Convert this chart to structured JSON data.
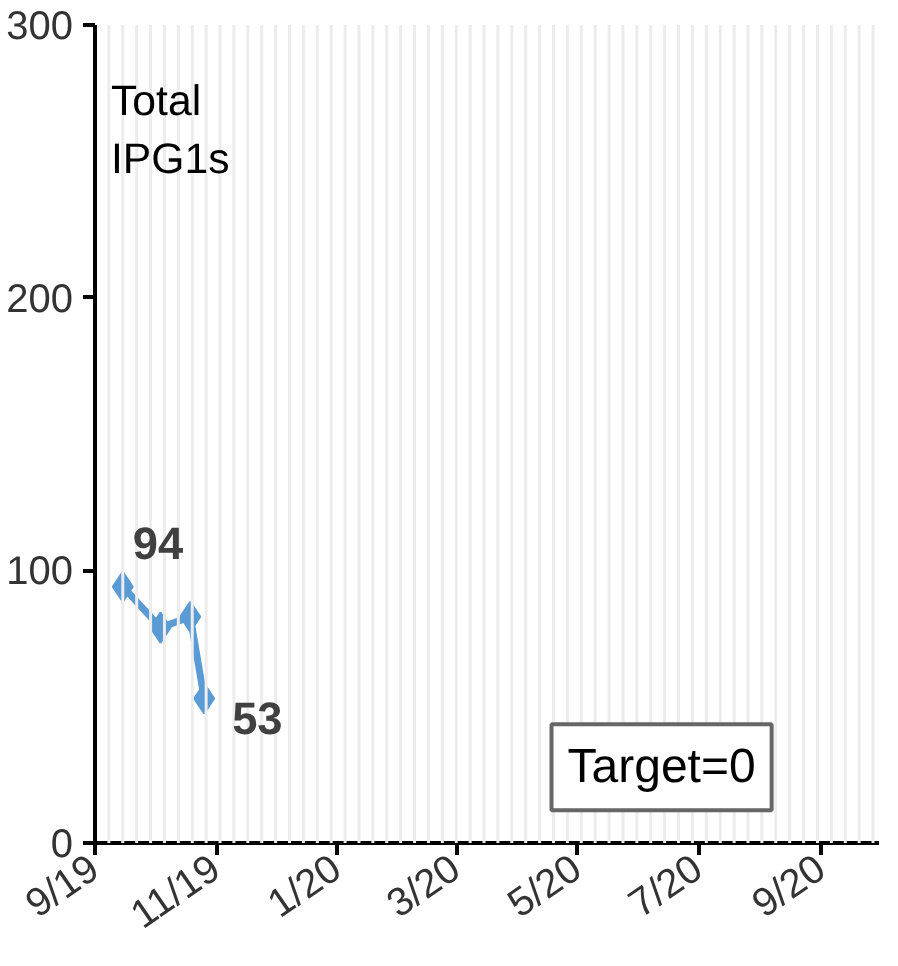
{
  "chart_data": {
    "type": "line",
    "title": "Total IPG1s",
    "x": [
      "2019-09-15",
      "2019-10-04",
      "2019-10-19",
      "2019-10-26"
    ],
    "series": [
      {
        "color": "#5b9bd5",
        "values": [
          94,
          79,
          83,
          53
        ],
        "value_labels": [
          "94",
          null,
          null,
          "53"
        ]
      }
    ],
    "xlim": [
      "2019-09-01",
      "2020-09-30"
    ],
    "xticks": [
      {
        "value": "2019-09-01",
        "label": "9/19"
      },
      {
        "value": "2019-11-01",
        "label": "11/19"
      },
      {
        "value": "2020-01-01",
        "label": "1/20"
      },
      {
        "value": "2020-03-01",
        "label": "3/20"
      },
      {
        "value": "2020-05-01",
        "label": "5/20"
      },
      {
        "value": "2020-07-01",
        "label": "7/20"
      },
      {
        "value": "2020-09-01",
        "label": "9/20"
      }
    ],
    "ylim": [
      0,
      300
    ],
    "yticks": [
      0,
      100,
      200,
      300
    ],
    "grid": "x",
    "marker": "diamond",
    "line_style": "solid",
    "annotations": [
      "Target=0"
    ]
  }
}
